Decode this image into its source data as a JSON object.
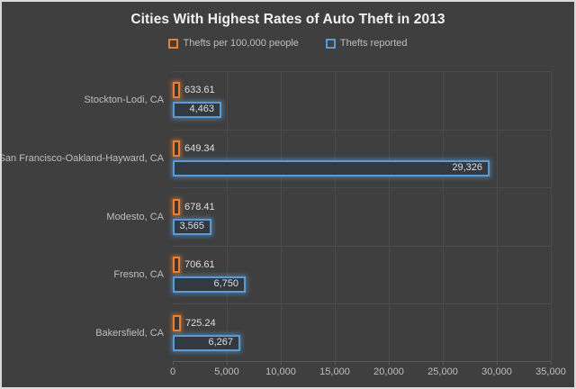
{
  "chart_data": {
    "type": "bar",
    "orientation": "horizontal",
    "title": "Cities With Highest Rates of Auto Theft in 2013",
    "categories": [
      "Stockton-Lodi, CA",
      "San Francisco-Oakland-Hayward, CA",
      "Modesto, CA",
      "Fresno, CA",
      "Bakersfield, CA"
    ],
    "series": [
      {
        "name": "Thefts per 100,000 people",
        "color": "#ED7D31",
        "values": [
          633.61,
          649.34,
          678.41,
          706.61,
          725.24
        ],
        "labels": [
          "633.61",
          "649.34",
          "678.41",
          "706.61",
          "725.24"
        ],
        "label_position": "outside-end"
      },
      {
        "name": "Thefts reported",
        "color": "#5B9BD5",
        "values": [
          4463,
          29326,
          3565,
          6750,
          6267
        ],
        "labels": [
          "4,463",
          "29,326",
          "3,565",
          "6,750",
          "6,267"
        ],
        "label_position": "inside-end"
      }
    ],
    "xlim": [
      0,
      35000
    ],
    "x_ticks": [
      "0",
      "5,000",
      "10,000",
      "15,000",
      "20,000",
      "25,000",
      "30,000",
      "35,000"
    ],
    "x_tick_values": [
      0,
      5000,
      10000,
      15000,
      20000,
      25000,
      30000,
      35000
    ],
    "grid": true,
    "legend_position": "top",
    "background_color": "#3F3F3F",
    "gridline_color": "#4B4B4B",
    "text_color": "#BEBEBE",
    "title_color": "#F1F1F1",
    "value_label_color": "#DFDFDF"
  }
}
